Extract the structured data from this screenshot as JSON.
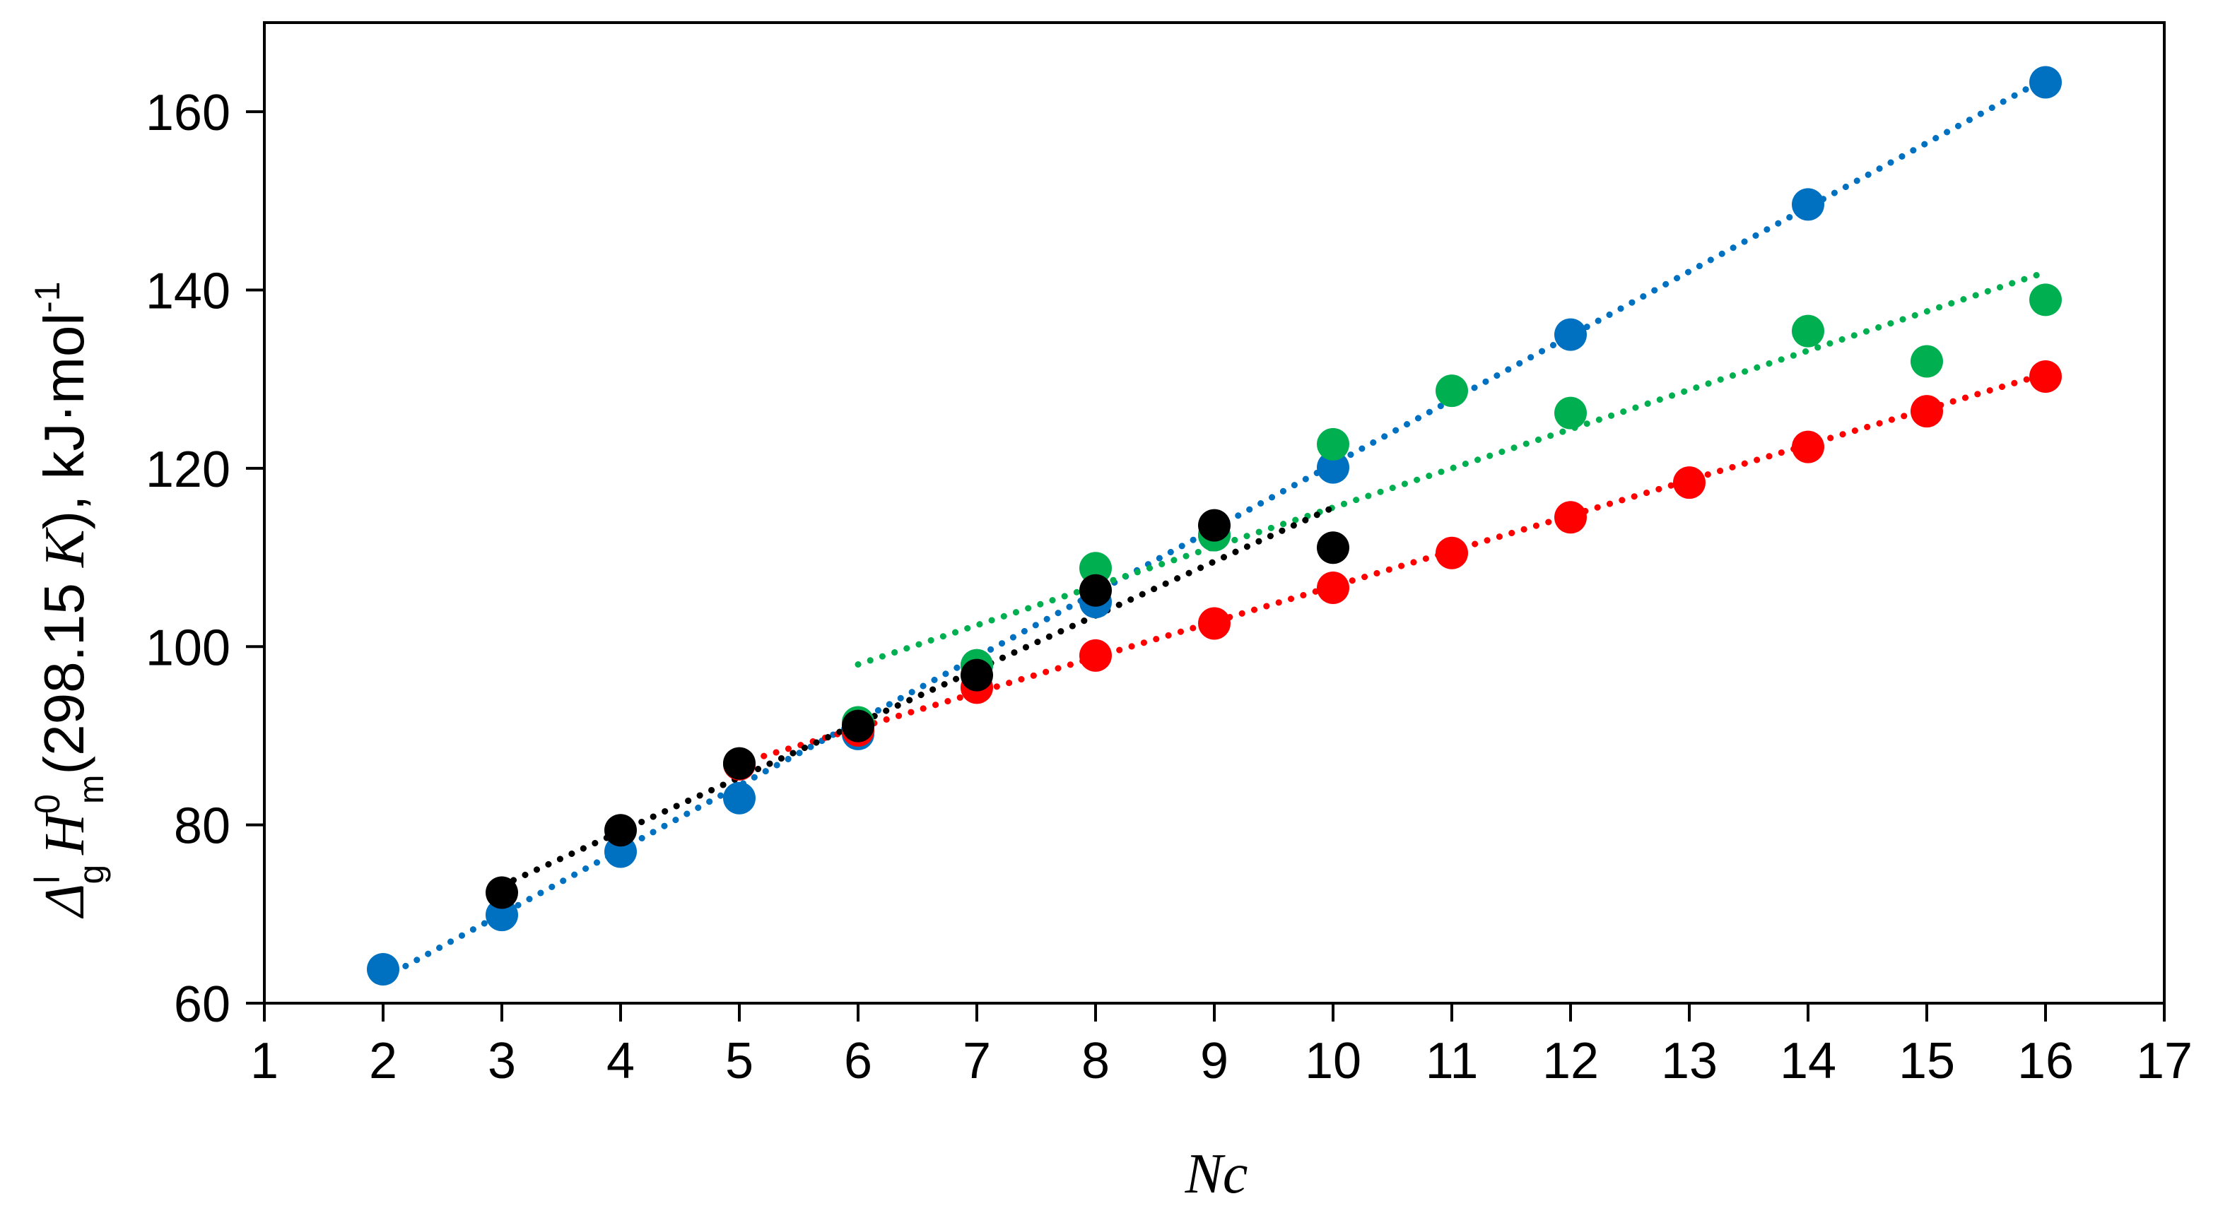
{
  "chart_data": {
    "type": "scatter",
    "xlabel": "Nc",
    "ylabel": {
      "delta": "Δ",
      "sup_l": "l",
      "sub_g": "g",
      "H": "H",
      "sup_0": "0",
      "sub_m": "m",
      "open": "(298.15 ",
      "K": "K",
      "close": "), kJ·mol",
      "exp": "-1"
    },
    "xlim": [
      1,
      17
    ],
    "ylim": [
      60,
      170
    ],
    "xticks": [
      1,
      2,
      3,
      4,
      5,
      6,
      7,
      8,
      9,
      10,
      11,
      12,
      13,
      14,
      15,
      16,
      17
    ],
    "yticks": [
      60,
      80,
      100,
      120,
      140,
      160
    ],
    "grid": false,
    "legend": "none",
    "series": [
      {
        "color": "#0070c0",
        "x": [
          2,
          3,
          4,
          5,
          6,
          7,
          8,
          9,
          10,
          12,
          14,
          16
        ],
        "y": [
          63.8,
          69.9,
          77.0,
          83.0,
          90.2,
          97.9,
          105.0,
          112.5,
          120.1,
          135.0,
          149.6,
          163.3
        ],
        "trendline": {
          "x": [
            2,
            16
          ],
          "y": [
            62.8,
            163.7
          ]
        }
      },
      {
        "color": "#00b050",
        "x": [
          6,
          7,
          8,
          9,
          10,
          11,
          12,
          14,
          15,
          16
        ],
        "y": [
          91.5,
          97.9,
          108.8,
          112.5,
          122.7,
          128.7,
          126.2,
          135.4,
          132.0,
          138.9
        ],
        "trendline": {
          "x": [
            6,
            16
          ],
          "y": [
            98.0,
            142.0
          ]
        }
      },
      {
        "color": "#ff0000",
        "x": [
          5,
          6,
          7,
          8,
          9,
          10,
          11,
          12,
          13,
          14,
          15,
          16
        ],
        "y": [
          86.8,
          90.6,
          95.4,
          99.0,
          102.6,
          106.6,
          110.5,
          114.5,
          118.4,
          122.4,
          126.4,
          130.3
        ],
        "trendline": {
          "x": [
            5,
            16
          ],
          "y": [
            86.9,
            130.6
          ]
        }
      },
      {
        "color": "#000000",
        "x": [
          3,
          4,
          5,
          6,
          7,
          8,
          9,
          10
        ],
        "y": [
          72.4,
          79.4,
          86.9,
          91.1,
          96.8,
          106.3,
          113.6,
          111.1
        ],
        "trendline": {
          "x": [
            3,
            10
          ],
          "y": [
            73.2,
            115.6
          ]
        }
      }
    ]
  }
}
